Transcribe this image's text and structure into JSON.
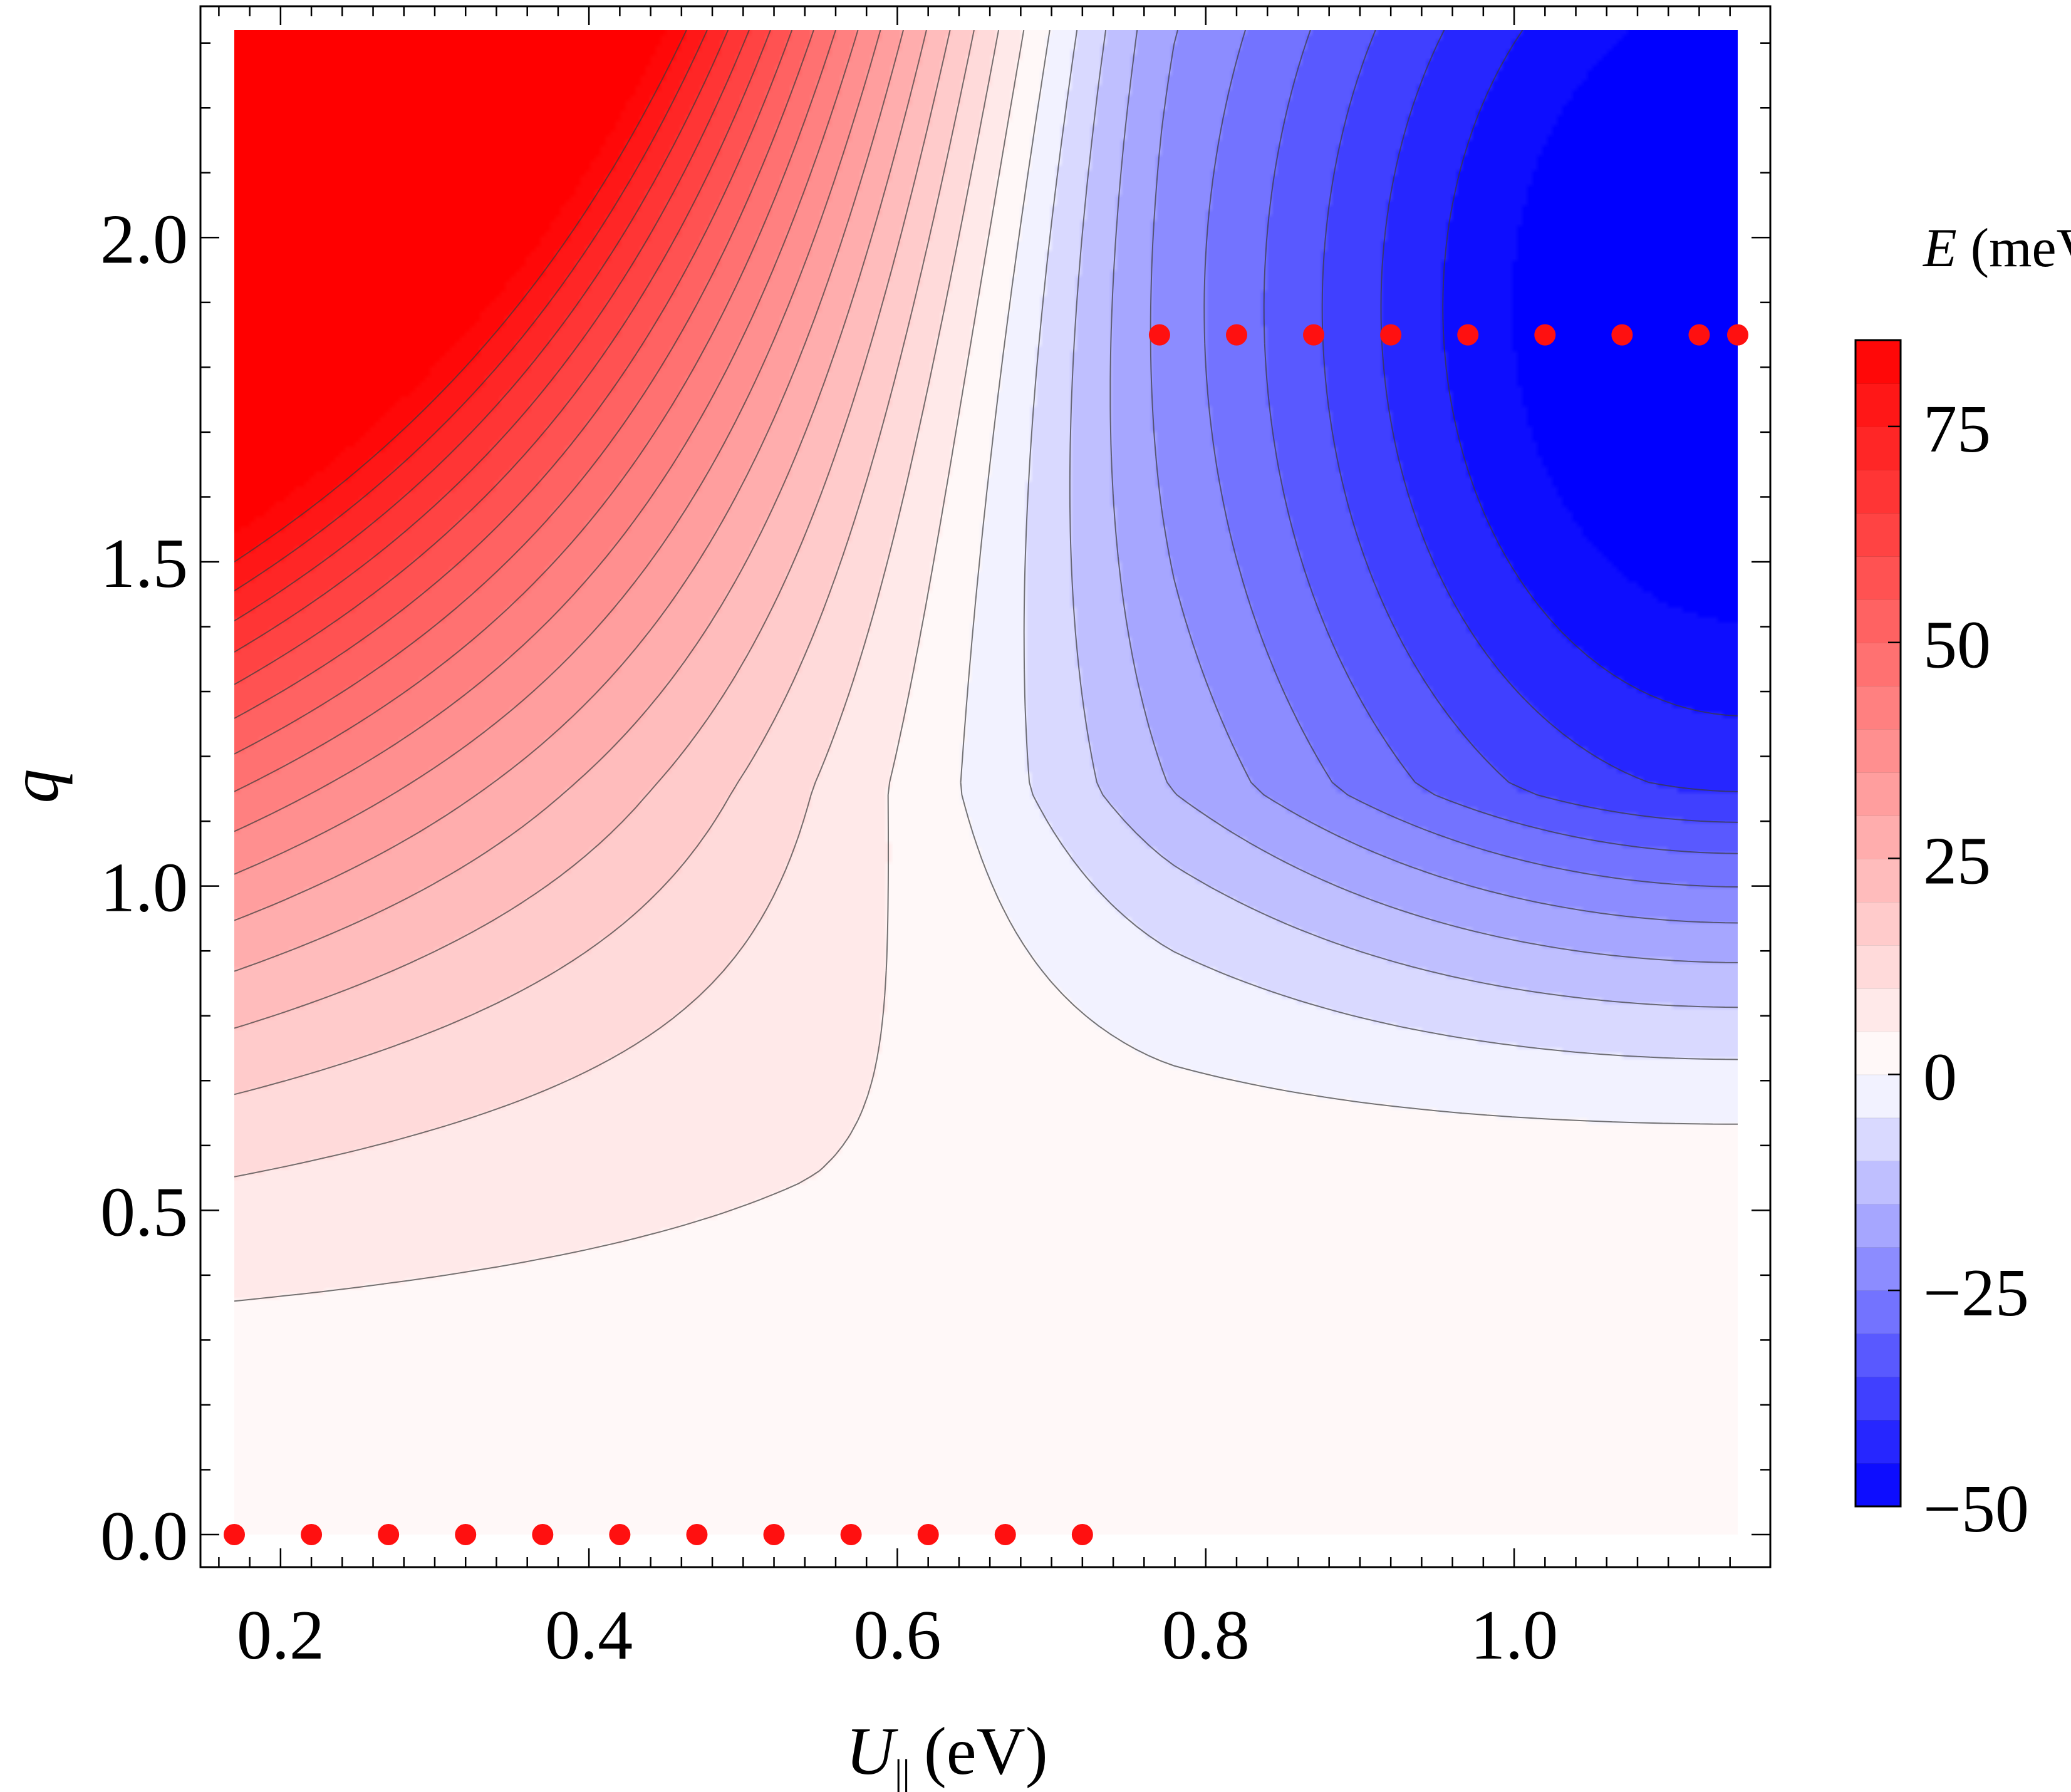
{
  "chart_data": {
    "type": "heatmap",
    "subtype": "filled-contour",
    "title": "",
    "xlabel": "U",
    "xlabel_subscript": "||",
    "xlabel_unit": "(eV)",
    "ylabel": "q",
    "xlim": [
      0.17,
      1.145
    ],
    "ylim": [
      0.0,
      2.32
    ],
    "x_ticks": [
      {
        "value": 0.2,
        "label": "0.2"
      },
      {
        "value": 0.4,
        "label": "0.4"
      },
      {
        "value": 0.6,
        "label": "0.6"
      },
      {
        "value": 0.8,
        "label": "0.8"
      },
      {
        "value": 1.0,
        "label": "1.0"
      }
    ],
    "y_ticks": [
      {
        "value": 0.0,
        "label": "0.0"
      },
      {
        "value": 0.5,
        "label": "0.5"
      },
      {
        "value": 1.0,
        "label": "1.0"
      },
      {
        "value": 1.5,
        "label": "1.5"
      },
      {
        "value": 2.0,
        "label": "2.0"
      }
    ],
    "colorbar": {
      "label_var": "E",
      "label_unit": "(meV)",
      "range": [
        -50,
        85
      ],
      "ticks": [
        {
          "value": 75,
          "label": "75"
        },
        {
          "value": 50,
          "label": "50"
        },
        {
          "value": 25,
          "label": "25"
        },
        {
          "value": 0,
          "label": "0"
        },
        {
          "value": -25,
          "label": "−25"
        },
        {
          "value": -50,
          "label": "−50"
        }
      ],
      "contour_step": 5,
      "colors": {
        "min": "#0000ff",
        "zero": "#ffffff",
        "max": "#ff0000"
      }
    },
    "series": [
      {
        "marker_color": "#ff1010",
        "points": [
          {
            "x": 0.17,
            "y": 0.0
          },
          {
            "x": 0.22,
            "y": 0.0
          },
          {
            "x": 0.27,
            "y": 0.0
          },
          {
            "x": 0.32,
            "y": 0.0
          },
          {
            "x": 0.37,
            "y": 0.0
          },
          {
            "x": 0.42,
            "y": 0.0
          },
          {
            "x": 0.47,
            "y": 0.0
          },
          {
            "x": 0.52,
            "y": 0.0
          },
          {
            "x": 0.57,
            "y": 0.0
          },
          {
            "x": 0.62,
            "y": 0.0
          },
          {
            "x": 0.67,
            "y": 0.0
          },
          {
            "x": 0.72,
            "y": 0.0
          },
          {
            "x": 0.77,
            "y": 1.85
          },
          {
            "x": 0.82,
            "y": 1.85
          },
          {
            "x": 0.87,
            "y": 1.85
          },
          {
            "x": 0.92,
            "y": 1.85
          },
          {
            "x": 0.97,
            "y": 1.85
          },
          {
            "x": 1.02,
            "y": 1.85
          },
          {
            "x": 1.07,
            "y": 1.85
          },
          {
            "x": 1.12,
            "y": 1.85
          },
          {
            "x": 1.145,
            "y": 1.85
          }
        ]
      }
    ],
    "approx_energy_samples": [
      {
        "x": 0.17,
        "y": 2.32,
        "E": 85
      },
      {
        "x": 0.17,
        "y": 1.0,
        "E": 20
      },
      {
        "x": 0.17,
        "y": 0.3,
        "E": 2
      },
      {
        "x": 0.75,
        "y": 1.5,
        "E": 4
      },
      {
        "x": 1.12,
        "y": 1.85,
        "E": -50
      },
      {
        "x": 1.145,
        "y": 0.8,
        "E": -8
      }
    ],
    "grid": false,
    "legend": "colorbar-right"
  }
}
